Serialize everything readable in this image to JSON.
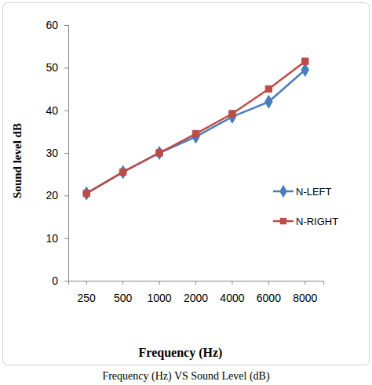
{
  "chart_data": {
    "type": "line",
    "title": "Frequency (Hz) VS Sound Level (dB)",
    "x_label": "Frequency (Hz)",
    "y_label": "Sound level dB",
    "categories": [
      "250",
      "500",
      "1000",
      "2000",
      "4000",
      "6000",
      "8000"
    ],
    "series": [
      {
        "name": "N-LEFT",
        "color": "#4a7ebb",
        "marker": "diamond",
        "values": [
          20.5,
          25.5,
          30,
          33.8,
          38.5,
          42,
          49.5
        ]
      },
      {
        "name": "N-RIGHT",
        "color": "#be4b48",
        "marker": "square",
        "values": [
          20.5,
          25.5,
          30,
          34.5,
          39.2,
          45,
          51.5
        ]
      }
    ],
    "ylim": [
      0,
      60
    ],
    "yticks": [
      0,
      10,
      20,
      30,
      40,
      50,
      60
    ],
    "grid": false,
    "legend": "right"
  }
}
